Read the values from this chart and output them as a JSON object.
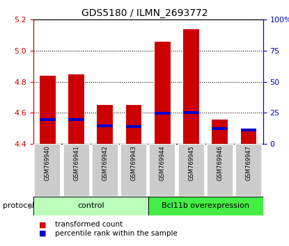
{
  "title": "GDS5180 / ILMN_2693772",
  "samples": [
    "GSM769940",
    "GSM769941",
    "GSM769942",
    "GSM769943",
    "GSM769944",
    "GSM769945",
    "GSM769946",
    "GSM769947"
  ],
  "red_top": [
    4.84,
    4.85,
    4.65,
    4.65,
    5.06,
    5.14,
    4.555,
    4.495
  ],
  "blue_pos": [
    4.555,
    4.555,
    4.515,
    4.513,
    4.598,
    4.603,
    4.498,
    4.492
  ],
  "bar_bottom": 4.4,
  "ylim": [
    4.4,
    5.2
  ],
  "y_ticks": [
    4.4,
    4.6,
    4.8,
    5.0,
    5.2
  ],
  "y2_ticks": [
    0,
    25,
    50,
    75,
    100
  ],
  "y2_labels": [
    "0",
    "25",
    "50",
    "75",
    "100%"
  ],
  "red_color": "#cc0000",
  "blue_color": "#0000cc",
  "bar_width": 0.55,
  "groups": [
    {
      "label": "control",
      "start": 0,
      "end": 3,
      "color": "#bbffbb"
    },
    {
      "label": "Bcl11b overexpression",
      "start": 4,
      "end": 7,
      "color": "#44ee44"
    }
  ],
  "protocol_label": "protocol",
  "legend_items": [
    {
      "color": "#cc0000",
      "label": "transformed count"
    },
    {
      "color": "#0000cc",
      "label": "percentile rank within the sample"
    }
  ],
  "blue_bar_height": 0.018,
  "sample_box_color": "#cccccc",
  "title_fontsize": 10,
  "tick_fontsize": 8,
  "legend_fontsize": 7.5,
  "sample_fontsize": 6,
  "group_fontsize": 8,
  "proto_fontsize": 8
}
